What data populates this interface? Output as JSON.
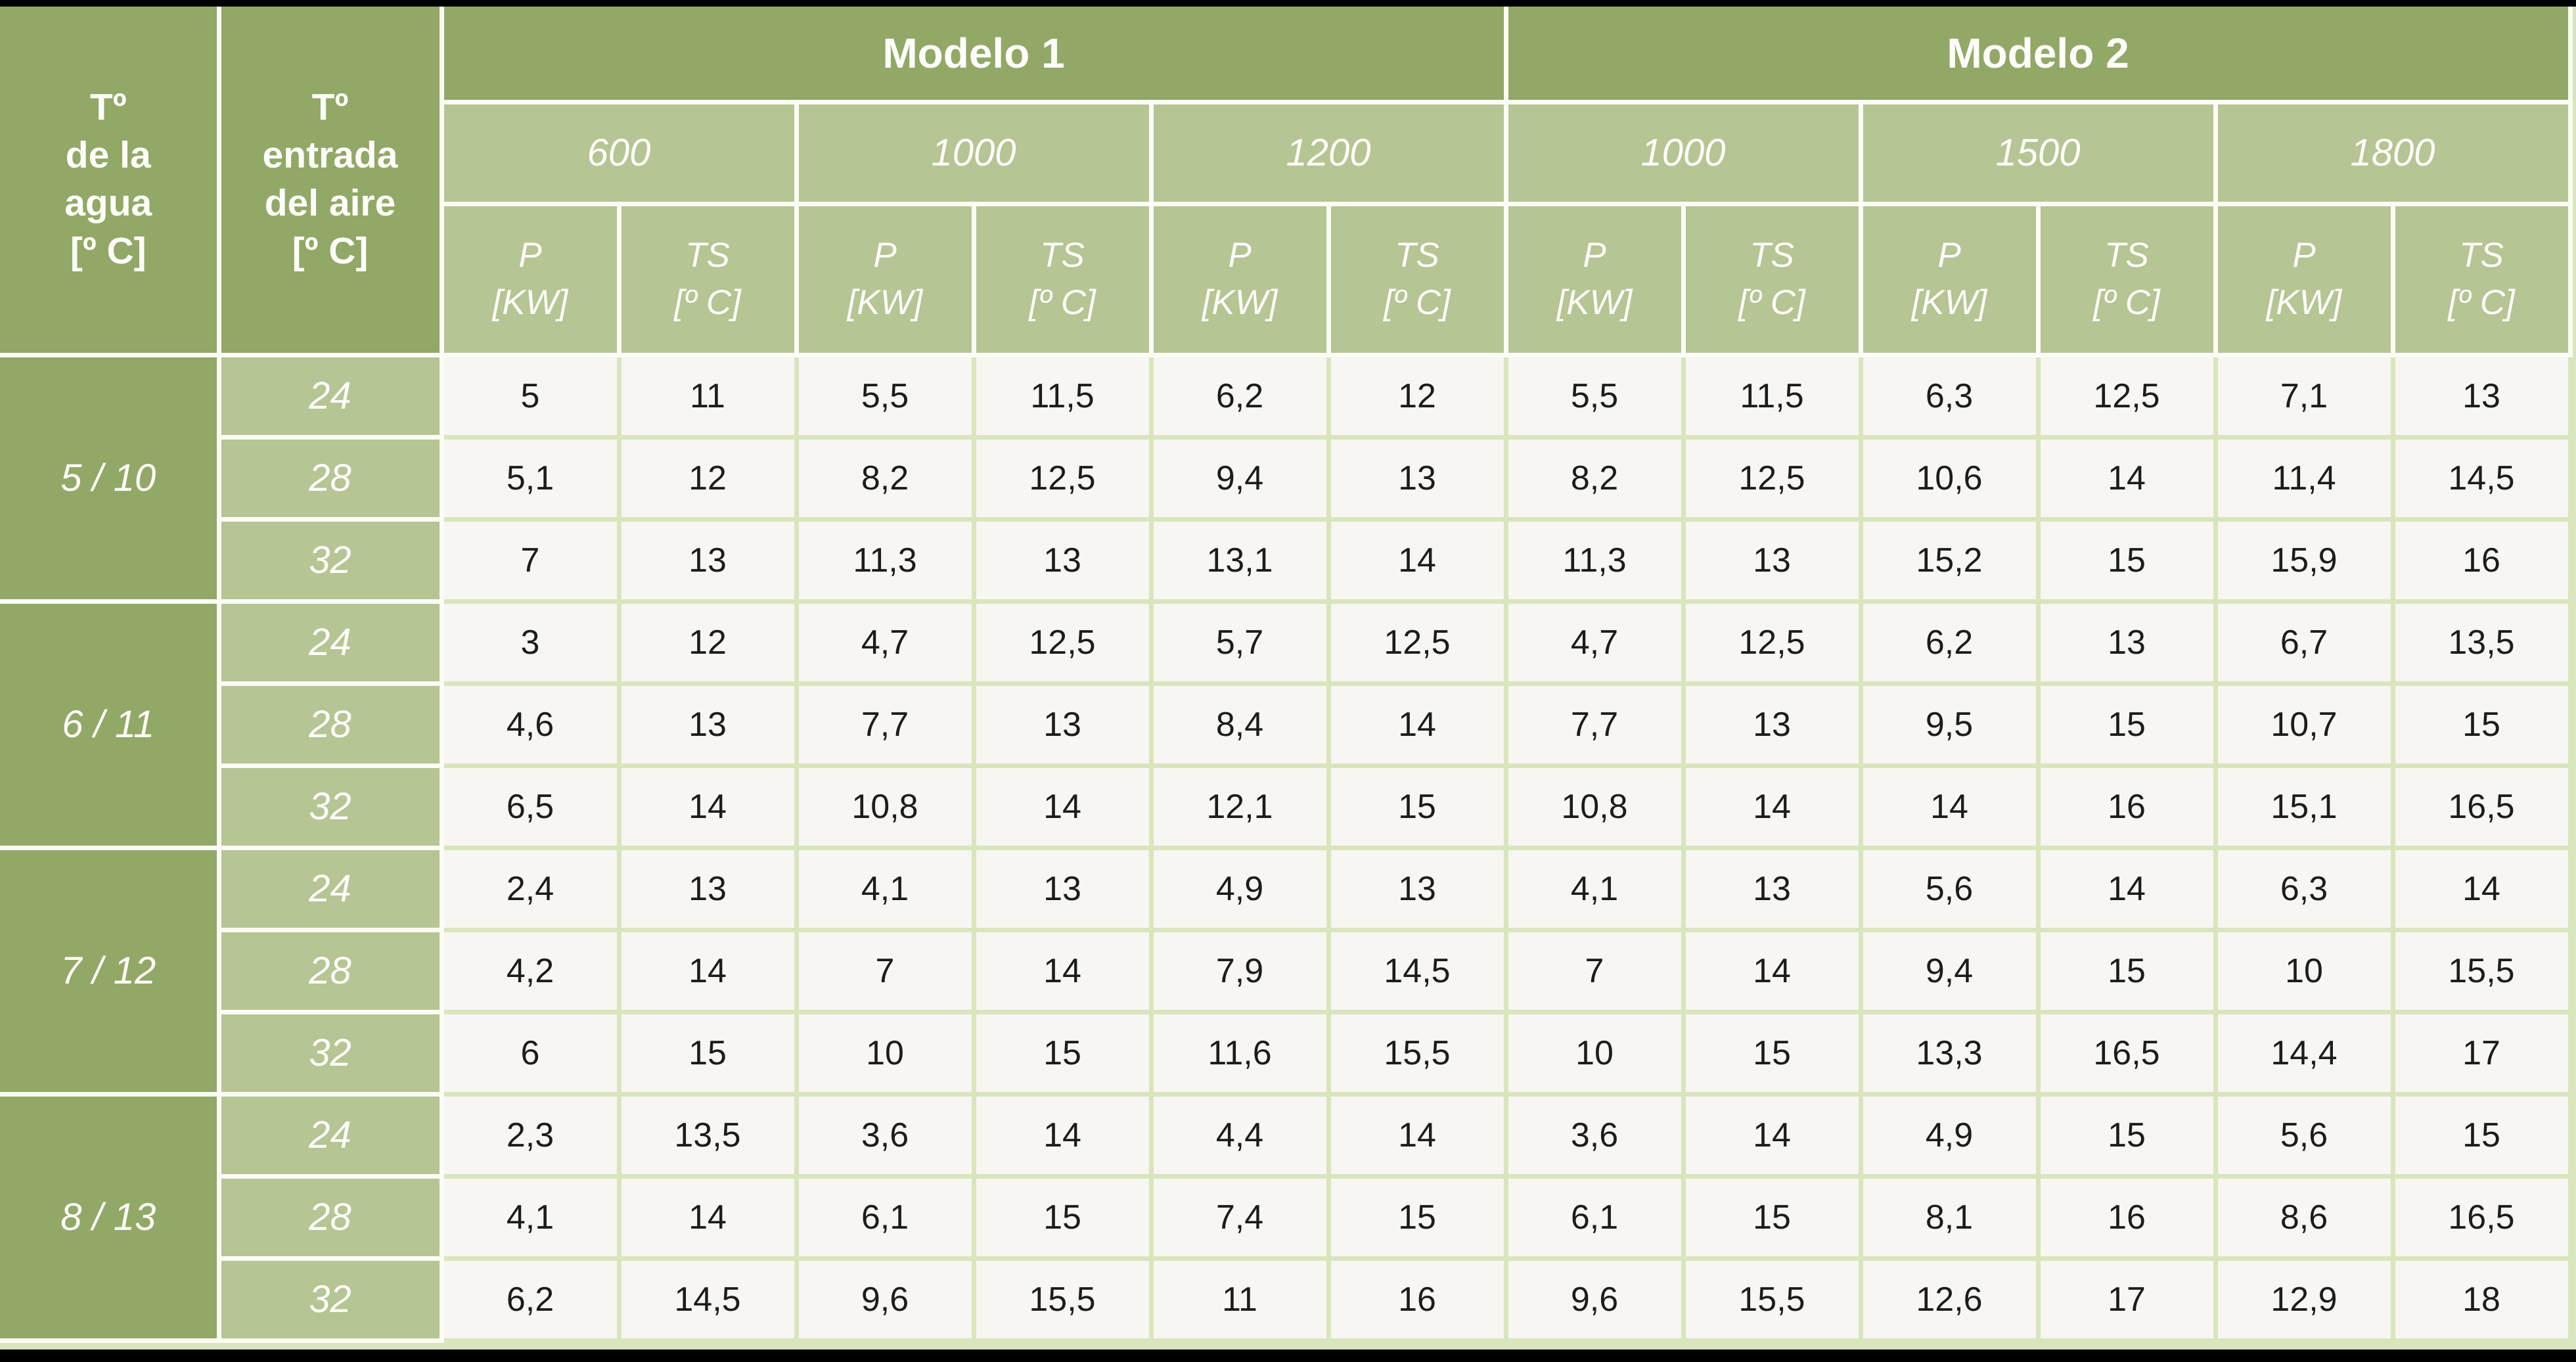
{
  "colors": {
    "header_green": "#92a866",
    "subheader_green": "#b5c593",
    "grid_green": "#d9e5bc",
    "cell_background": "#f7f6f2",
    "header_text": "#fdfdfa",
    "data_text": "#1c1c1c",
    "page_background": "#000000"
  },
  "table": {
    "corner_headers": [
      {
        "label": "Tº\nde la\nagua\n[º C]"
      },
      {
        "label": "Tº\nentrada\ndel aire\n[º C]"
      }
    ],
    "models": [
      {
        "label": "Modelo 1",
        "sizes": [
          "600",
          "1000",
          "1200"
        ]
      },
      {
        "label": "Modelo 2",
        "sizes": [
          "1000",
          "1500",
          "1800"
        ]
      }
    ],
    "sub_headers": {
      "p": "P\n[KW]",
      "ts": "TS\n[º C]"
    },
    "groups": [
      {
        "water_temp": "5 / 10",
        "rows": [
          {
            "air_temp": "24",
            "values": [
              "5",
              "11",
              "5,5",
              "11,5",
              "6,2",
              "12",
              "5,5",
              "11,5",
              "6,3",
              "12,5",
              "7,1",
              "13"
            ]
          },
          {
            "air_temp": "28",
            "values": [
              "5,1",
              "12",
              "8,2",
              "12,5",
              "9,4",
              "13",
              "8,2",
              "12,5",
              "10,6",
              "14",
              "11,4",
              "14,5"
            ]
          },
          {
            "air_temp": "32",
            "values": [
              "7",
              "13",
              "11,3",
              "13",
              "13,1",
              "14",
              "11,3",
              "13",
              "15,2",
              "15",
              "15,9",
              "16"
            ]
          }
        ]
      },
      {
        "water_temp": "6 / 11",
        "rows": [
          {
            "air_temp": "24",
            "values": [
              "3",
              "12",
              "4,7",
              "12,5",
              "5,7",
              "12,5",
              "4,7",
              "12,5",
              "6,2",
              "13",
              "6,7",
              "13,5"
            ]
          },
          {
            "air_temp": "28",
            "values": [
              "4,6",
              "13",
              "7,7",
              "13",
              "8,4",
              "14",
              "7,7",
              "13",
              "9,5",
              "15",
              "10,7",
              "15"
            ]
          },
          {
            "air_temp": "32",
            "values": [
              "6,5",
              "14",
              "10,8",
              "14",
              "12,1",
              "15",
              "10,8",
              "14",
              "14",
              "16",
              "15,1",
              "16,5"
            ]
          }
        ]
      },
      {
        "water_temp": "7 / 12",
        "rows": [
          {
            "air_temp": "24",
            "values": [
              "2,4",
              "13",
              "4,1",
              "13",
              "4,9",
              "13",
              "4,1",
              "13",
              "5,6",
              "14",
              "6,3",
              "14"
            ]
          },
          {
            "air_temp": "28",
            "values": [
              "4,2",
              "14",
              "7",
              "14",
              "7,9",
              "14,5",
              "7",
              "14",
              "9,4",
              "15",
              "10",
              "15,5"
            ]
          },
          {
            "air_temp": "32",
            "values": [
              "6",
              "15",
              "10",
              "15",
              "11,6",
              "15,5",
              "10",
              "15",
              "13,3",
              "16,5",
              "14,4",
              "17"
            ]
          }
        ]
      },
      {
        "water_temp": "8 / 13",
        "rows": [
          {
            "air_temp": "24",
            "values": [
              "2,3",
              "13,5",
              "3,6",
              "14",
              "4,4",
              "14",
              "3,6",
              "14",
              "4,9",
              "15",
              "5,6",
              "15"
            ]
          },
          {
            "air_temp": "28",
            "values": [
              "4,1",
              "14",
              "6,1",
              "15",
              "7,4",
              "15",
              "6,1",
              "15",
              "8,1",
              "16",
              "8,6",
              "16,5"
            ]
          },
          {
            "air_temp": "32",
            "values": [
              "6,2",
              "14,5",
              "9,6",
              "15,5",
              "11",
              "16",
              "9,6",
              "15,5",
              "12,6",
              "17",
              "12,9",
              "18"
            ]
          }
        ]
      }
    ]
  }
}
